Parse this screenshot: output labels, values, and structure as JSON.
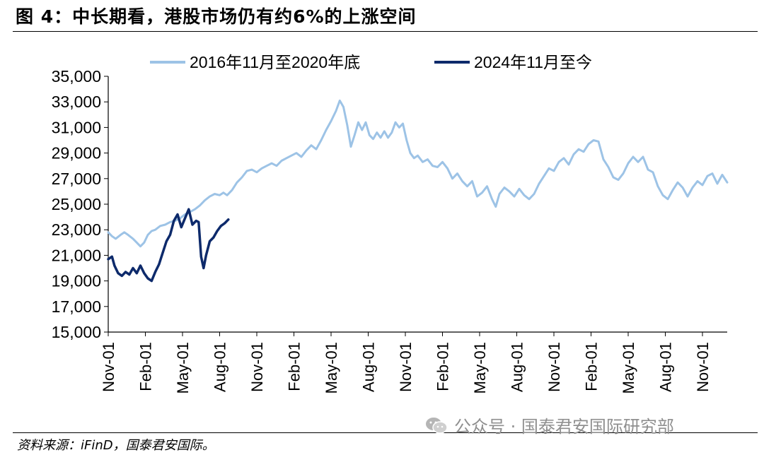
{
  "header": {
    "title": "图 4：中长期看，港股市场仍有约6%的上涨空间"
  },
  "footer": {
    "source": "资料来源：iFinD，国泰君安国际。",
    "watermark": "公众号 · 国泰君安国际研究部",
    "watermark_icon": "wechat-logo-icon"
  },
  "chart_data": {
    "type": "line",
    "title": "",
    "xlabel": "",
    "ylabel": "",
    "ylim": [
      15000,
      35000
    ],
    "yticks": [
      15000,
      17000,
      19000,
      21000,
      23000,
      25000,
      27000,
      29000,
      31000,
      33000,
      35000
    ],
    "ytick_labels": [
      "15,000",
      "17,000",
      "19,000",
      "21,000",
      "23,000",
      "25,000",
      "27,000",
      "29,000",
      "31,000",
      "33,000",
      "35,000"
    ],
    "x_unit": "month index (0 = Nov-01)",
    "xlim": [
      0,
      50
    ],
    "xticks": [
      0,
      3,
      6,
      9,
      12,
      15,
      18,
      21,
      24,
      27,
      30,
      33,
      36,
      39,
      42,
      45,
      48
    ],
    "xtick_labels": [
      "Nov-01",
      "Feb-01",
      "May-01",
      "Aug-01",
      "Nov-01",
      "Feb-01",
      "May-01",
      "Aug-01",
      "Nov-01",
      "Feb-01",
      "May-01",
      "Aug-01",
      "Nov-01",
      "Feb-01",
      "May-01",
      "Aug-01",
      "Nov-01"
    ],
    "grid": false,
    "legend_position": "top",
    "series": [
      {
        "name": "2016年11月至2020年底",
        "color": "#9dc3e6",
        "points": [
          [
            0,
            22800
          ],
          [
            0.3,
            22500
          ],
          [
            0.6,
            22300
          ],
          [
            1,
            22600
          ],
          [
            1.3,
            22800
          ],
          [
            1.6,
            22600
          ],
          [
            2,
            22300
          ],
          [
            2.3,
            22000
          ],
          [
            2.6,
            21700
          ],
          [
            2.9,
            22000
          ],
          [
            3.2,
            22600
          ],
          [
            3.5,
            22900
          ],
          [
            3.8,
            23000
          ],
          [
            4.2,
            23300
          ],
          [
            4.6,
            23400
          ],
          [
            5,
            23600
          ],
          [
            5.4,
            23700
          ],
          [
            5.8,
            23900
          ],
          [
            6.2,
            24200
          ],
          [
            6.6,
            24400
          ],
          [
            7,
            24600
          ],
          [
            7.4,
            24900
          ],
          [
            7.8,
            25300
          ],
          [
            8.2,
            25600
          ],
          [
            8.6,
            25800
          ],
          [
            9,
            25700
          ],
          [
            9.3,
            25900
          ],
          [
            9.6,
            25700
          ],
          [
            10,
            26100
          ],
          [
            10.4,
            26700
          ],
          [
            10.8,
            27100
          ],
          [
            11.2,
            27600
          ],
          [
            11.6,
            27700
          ],
          [
            12,
            27500
          ],
          [
            12.4,
            27800
          ],
          [
            12.8,
            28000
          ],
          [
            13.2,
            28200
          ],
          [
            13.6,
            28000
          ],
          [
            14,
            28400
          ],
          [
            14.4,
            28600
          ],
          [
            14.8,
            28800
          ],
          [
            15.2,
            29000
          ],
          [
            15.6,
            28700
          ],
          [
            16,
            29200
          ],
          [
            16.4,
            29600
          ],
          [
            16.8,
            29300
          ],
          [
            17.2,
            30000
          ],
          [
            17.6,
            30800
          ],
          [
            18,
            31500
          ],
          [
            18.4,
            32300
          ],
          [
            18.7,
            33100
          ],
          [
            19,
            32600
          ],
          [
            19.3,
            31200
          ],
          [
            19.6,
            29500
          ],
          [
            19.9,
            30400
          ],
          [
            20.2,
            31400
          ],
          [
            20.5,
            30800
          ],
          [
            20.8,
            31400
          ],
          [
            21.1,
            30400
          ],
          [
            21.4,
            30100
          ],
          [
            21.7,
            30600
          ],
          [
            22,
            30200
          ],
          [
            22.3,
            30700
          ],
          [
            22.6,
            30200
          ],
          [
            22.9,
            30600
          ],
          [
            23.2,
            31400
          ],
          [
            23.5,
            31000
          ],
          [
            23.8,
            31300
          ],
          [
            24.1,
            30000
          ],
          [
            24.4,
            29000
          ],
          [
            24.7,
            28600
          ],
          [
            25,
            28800
          ],
          [
            25.4,
            28300
          ],
          [
            25.8,
            28500
          ],
          [
            26.2,
            28000
          ],
          [
            26.6,
            27900
          ],
          [
            27,
            28300
          ],
          [
            27.4,
            27800
          ],
          [
            27.8,
            27000
          ],
          [
            28.2,
            27400
          ],
          [
            28.6,
            26800
          ],
          [
            29,
            26400
          ],
          [
            29.4,
            26800
          ],
          [
            29.8,
            25600
          ],
          [
            30.2,
            25900
          ],
          [
            30.6,
            26400
          ],
          [
            31,
            25400
          ],
          [
            31.3,
            24800
          ],
          [
            31.6,
            25800
          ],
          [
            32,
            26300
          ],
          [
            32.4,
            26000
          ],
          [
            32.8,
            25600
          ],
          [
            33.2,
            26200
          ],
          [
            33.6,
            25700
          ],
          [
            34,
            25400
          ],
          [
            34.4,
            25800
          ],
          [
            34.8,
            26600
          ],
          [
            35.2,
            27200
          ],
          [
            35.6,
            27800
          ],
          [
            36,
            27600
          ],
          [
            36.4,
            28300
          ],
          [
            36.8,
            28600
          ],
          [
            37.2,
            28100
          ],
          [
            37.6,
            28900
          ],
          [
            38,
            29300
          ],
          [
            38.4,
            29100
          ],
          [
            38.8,
            29700
          ],
          [
            39.2,
            30000
          ],
          [
            39.6,
            29900
          ],
          [
            40,
            28500
          ],
          [
            40.4,
            27900
          ],
          [
            40.8,
            27100
          ],
          [
            41.2,
            26900
          ],
          [
            41.6,
            27400
          ],
          [
            42,
            28200
          ],
          [
            42.4,
            28700
          ],
          [
            42.8,
            28300
          ],
          [
            43.2,
            28700
          ],
          [
            43.6,
            27700
          ],
          [
            44,
            27500
          ],
          [
            44.4,
            26400
          ],
          [
            44.8,
            25700
          ],
          [
            45.2,
            25400
          ],
          [
            45.6,
            26100
          ],
          [
            46,
            26700
          ],
          [
            46.4,
            26300
          ],
          [
            46.8,
            25600
          ],
          [
            47.2,
            26300
          ],
          [
            47.6,
            26800
          ],
          [
            48,
            26500
          ],
          [
            48.4,
            27200
          ],
          [
            48.8,
            27400
          ],
          [
            49.2,
            26600
          ],
          [
            49.6,
            27300
          ],
          [
            50,
            26700
          ]
        ]
      },
      {
        "name": "2024年11月至今",
        "color": "#0d2a6b",
        "points": [
          [
            0,
            20700
          ],
          [
            0.3,
            20900
          ],
          [
            0.5,
            20200
          ],
          [
            0.8,
            19600
          ],
          [
            1.1,
            19400
          ],
          [
            1.4,
            19700
          ],
          [
            1.7,
            19500
          ],
          [
            2,
            20000
          ],
          [
            2.3,
            19600
          ],
          [
            2.6,
            20200
          ],
          [
            2.9,
            19600
          ],
          [
            3.2,
            19200
          ],
          [
            3.5,
            19000
          ],
          [
            3.8,
            19700
          ],
          [
            4.1,
            20300
          ],
          [
            4.4,
            21200
          ],
          [
            4.7,
            22100
          ],
          [
            5,
            22600
          ],
          [
            5.3,
            23700
          ],
          [
            5.6,
            24200
          ],
          [
            5.9,
            23200
          ],
          [
            6.2,
            23900
          ],
          [
            6.5,
            24600
          ],
          [
            6.8,
            23400
          ],
          [
            7.1,
            23700
          ],
          [
            7.3,
            23600
          ],
          [
            7.5,
            20900
          ],
          [
            7.7,
            20000
          ],
          [
            7.9,
            21000
          ],
          [
            8.2,
            22100
          ],
          [
            8.5,
            22400
          ],
          [
            8.8,
            22900
          ],
          [
            9.1,
            23300
          ],
          [
            9.4,
            23500
          ],
          [
            9.7,
            23800
          ]
        ]
      }
    ]
  }
}
